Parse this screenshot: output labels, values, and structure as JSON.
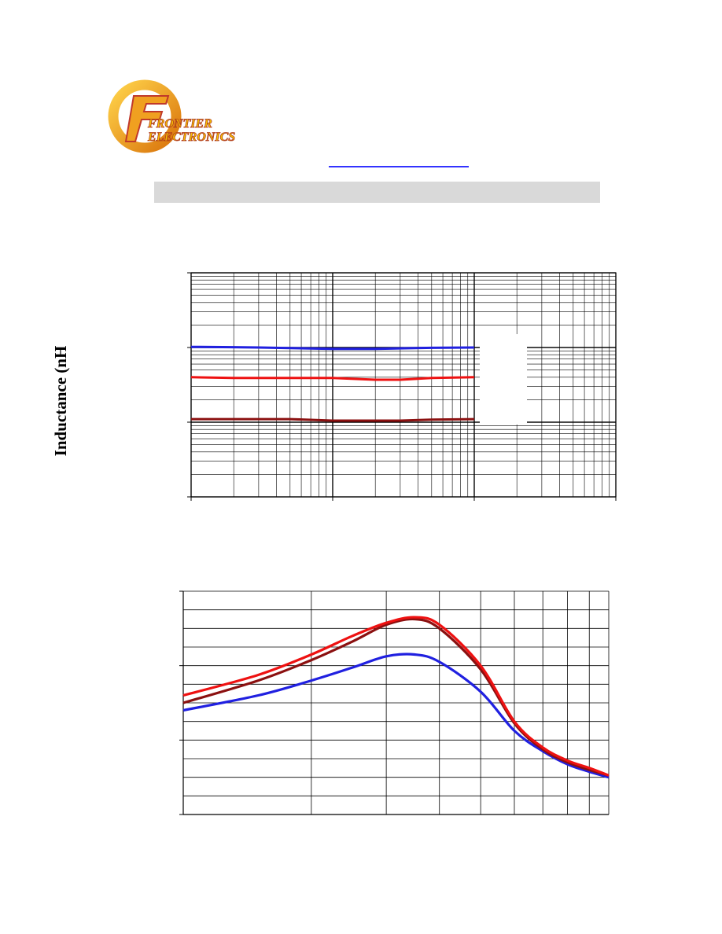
{
  "logo": {
    "line1": "FRONTIER",
    "line2": "ELECTRONICS",
    "icon": "frontier-electronics-logo",
    "colors": {
      "ring": "#f5a623",
      "text": "#f5c400",
      "shadow": "#c0392b"
    }
  },
  "header": {
    "link_color": "#3333ff",
    "bar_color": "#d9d9d9"
  },
  "chart_data": [
    {
      "type": "line",
      "title": "",
      "xlabel": "",
      "ylabel": "Inductance (nH",
      "x_scale": "log",
      "y_scale": "log",
      "xlim": [
        1,
        1000
      ],
      "ylim": [
        1,
        1000
      ],
      "grid": true,
      "series": [
        {
          "color": "#2020e0",
          "x": [
            1,
            2,
            3,
            5,
            10,
            20,
            50,
            100
          ],
          "y": [
            102,
            101,
            100,
            98,
            96,
            96,
            99,
            100
          ]
        },
        {
          "color": "#ee1111",
          "x": [
            1,
            2,
            5,
            10,
            20,
            30,
            50,
            100
          ],
          "y": [
            40,
            39,
            39,
            39,
            37,
            37,
            39,
            40
          ]
        },
        {
          "color": "#8b1010",
          "x": [
            1,
            2,
            5,
            10,
            20,
            30,
            50,
            100
          ],
          "y": [
            11,
            11,
            11,
            10.5,
            10.5,
            10.5,
            10.8,
            11
          ]
        }
      ]
    },
    {
      "type": "line",
      "title": "",
      "xlabel": "",
      "ylabel": "",
      "x_scale": "log",
      "y_scale": "linear",
      "xlim": [
        100,
        1000
      ],
      "ylim": [
        0,
        120
      ],
      "grid": true,
      "series": [
        {
          "color": "#2020e0",
          "x": [
            100,
            150,
            200,
            250,
            300,
            350,
            400,
            500,
            600,
            700,
            800,
            900,
            1000
          ],
          "y": [
            56,
            64,
            72,
            79,
            85,
            86,
            82,
            66,
            45,
            34,
            27,
            23,
            20
          ]
        },
        {
          "color": "#8b1010",
          "x": [
            100,
            150,
            200,
            250,
            300,
            350,
            400,
            500,
            600,
            700,
            800,
            900,
            1000
          ],
          "y": [
            60,
            72,
            83,
            93,
            102,
            105,
            100,
            78,
            49,
            35,
            28,
            24,
            21
          ]
        },
        {
          "color": "#ee1111",
          "x": [
            100,
            150,
            200,
            250,
            300,
            350,
            400,
            500,
            600,
            700,
            800,
            900,
            1000
          ],
          "y": [
            64,
            75,
            86,
            96,
            103,
            106,
            102,
            80,
            50,
            36,
            29,
            25,
            21
          ]
        }
      ]
    }
  ]
}
